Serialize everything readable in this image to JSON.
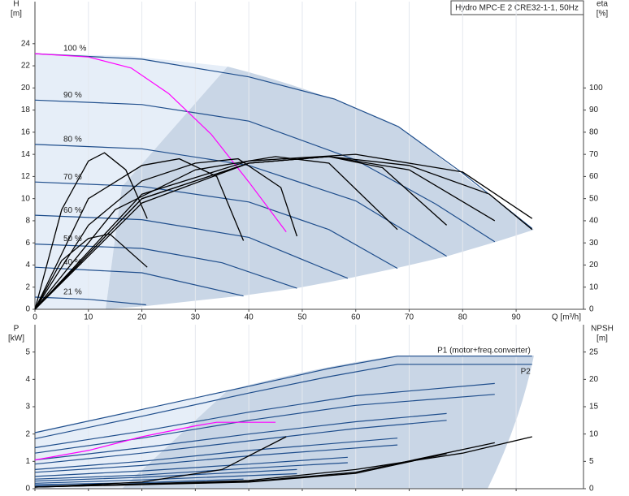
{
  "chart_data": [
    {
      "type": "line",
      "title": "Hydro MPC-E 2 CRE32-1-1, 50Hz",
      "ylabel": "H",
      "yunit": "[m]",
      "y2label": "eta",
      "y2unit": "[%]",
      "xlabel": "Q [m³/h]",
      "xlim": [
        0,
        102.6
      ],
      "ylim": [
        0,
        27.8
      ],
      "y2lim": [
        0,
        139
      ],
      "xticks": [
        0,
        10,
        20,
        30,
        40,
        50,
        60,
        70,
        80,
        90
      ],
      "yticks": [
        0,
        2,
        4,
        6,
        8,
        10,
        12,
        14,
        16,
        18,
        20,
        22,
        24
      ],
      "y2ticks": [
        0,
        10,
        20,
        30,
        40,
        50,
        60,
        70,
        80,
        90,
        100
      ],
      "series": [
        {
          "name": "100 %",
          "color": "#1f4e8c",
          "x": [
            0,
            20,
            40,
            56,
            68,
            80,
            93
          ],
          "values": [
            23.1,
            22.6,
            21,
            19,
            16.5,
            12.3,
            7.3
          ]
        },
        {
          "name": "90 %",
          "color": "#1f4e8c",
          "x": [
            0,
            20,
            40,
            60,
            75,
            86
          ],
          "values": [
            18.9,
            18.5,
            17,
            13.5,
            9.5,
            6.1
          ]
        },
        {
          "name": "80 %",
          "color": "#1f4e8c",
          "x": [
            0,
            20,
            40,
            60,
            77
          ],
          "values": [
            14.9,
            14.5,
            13,
            9.8,
            4.8
          ]
        },
        {
          "name": "70 %",
          "color": "#1f4e8c",
          "x": [
            0,
            20,
            40,
            55,
            67.8
          ],
          "values": [
            11.5,
            11.1,
            9.7,
            7.2,
            3.7
          ]
        },
        {
          "name": "60 %",
          "color": "#1f4e8c",
          "x": [
            0,
            20,
            40,
            58.5
          ],
          "values": [
            8.5,
            8.1,
            6.5,
            2.8
          ]
        },
        {
          "name": "50 %",
          "color": "#1f4e8c",
          "x": [
            0,
            20,
            35,
            49
          ],
          "values": [
            5.9,
            5.5,
            4.2,
            1.9
          ]
        },
        {
          "name": "40 %",
          "color": "#1f4e8c",
          "x": [
            0,
            20,
            39
          ],
          "values": [
            3.8,
            3.3,
            1.2
          ]
        },
        {
          "name": "21 %",
          "color": "#1f4e8c",
          "x": [
            0,
            10,
            20.8
          ],
          "values": [
            1.1,
            0.9,
            0.4
          ]
        },
        {
          "color": "#ff00ff",
          "x": [
            0,
            10,
            18,
            25,
            33,
            40,
            47
          ],
          "values": [
            23.1,
            22.8,
            21.8,
            19.5,
            15.8,
            11.5,
            7
          ]
        },
        {
          "color": "#000000",
          "axis": "y2",
          "x": [
            0,
            5,
            10,
            13,
            17,
            21
          ],
          "values": [
            0,
            45,
            67,
            70.7,
            63,
            41
          ]
        },
        {
          "color": "#000000",
          "axis": "y2",
          "x": [
            0,
            5,
            10,
            14,
            21
          ],
          "values": [
            0,
            22,
            32,
            34,
            19
          ]
        },
        {
          "color": "#000000",
          "axis": "y2",
          "x": [
            0,
            10,
            20,
            27,
            34,
            39
          ],
          "values": [
            0,
            50,
            65,
            68,
            60,
            31
          ]
        },
        {
          "color": "#000000",
          "axis": "y2",
          "x": [
            0,
            10,
            20,
            30,
            38,
            46,
            49
          ],
          "values": [
            0,
            38,
            58,
            66,
            68,
            55,
            33
          ]
        },
        {
          "color": "#000000",
          "axis": "y2",
          "x": [
            0,
            15,
            30,
            45,
            55,
            67.8
          ],
          "values": [
            0,
            45,
            63,
            69,
            66,
            36
          ]
        },
        {
          "color": "#000000",
          "axis": "y2",
          "x": [
            0,
            20,
            40,
            55,
            65,
            77
          ],
          "values": [
            0,
            50,
            66,
            69,
            64,
            38
          ]
        },
        {
          "color": "#000000",
          "axis": "y2",
          "x": [
            0,
            20,
            40,
            55,
            70,
            86
          ],
          "values": [
            0,
            48,
            66,
            69,
            63,
            40
          ]
        },
        {
          "color": "#000000",
          "axis": "y2",
          "x": [
            0,
            20,
            40,
            55,
            70,
            85,
            93
          ],
          "values": [
            0,
            50,
            66,
            69,
            65,
            52,
            36
          ]
        },
        {
          "color": "#000000",
          "axis": "y2",
          "x": [
            0,
            20,
            40,
            60,
            80,
            93
          ],
          "values": [
            0,
            52,
            67,
            70,
            62,
            41
          ]
        }
      ]
    },
    {
      "type": "line",
      "ylabel": "P",
      "yunit": "[kW]",
      "y2label": "NPSH",
      "y2unit": "[m]",
      "xlim": [
        0,
        102.6
      ],
      "ylim": [
        0,
        6
      ],
      "y2lim": [
        0,
        30
      ],
      "xticks": [
        0,
        10,
        20,
        30,
        40,
        50,
        60,
        70,
        80,
        90
      ],
      "yticks": [
        0,
        1,
        2,
        3,
        4,
        5
      ],
      "y2ticks": [
        0,
        5,
        10,
        15,
        20,
        25
      ],
      "series": [
        {
          "name": "P1 (motor+freq.converter)",
          "color": "#1f4e8c",
          "x": [
            0,
            20,
            40,
            55,
            67.8,
            93
          ],
          "values": [
            2.05,
            2.9,
            3.75,
            4.4,
            4.85,
            4.85
          ]
        },
        {
          "name": "P2",
          "color": "#1f4e8c",
          "x": [
            0,
            20,
            40,
            55,
            67.8,
            93
          ],
          "values": [
            1.83,
            2.65,
            3.5,
            4.1,
            4.55,
            4.55
          ]
        },
        {
          "color": "#1f4e8c",
          "x": [
            0,
            20,
            40,
            60,
            86
          ],
          "values": [
            1.5,
            2.1,
            2.8,
            3.4,
            3.85
          ]
        },
        {
          "color": "#1f4e8c",
          "x": [
            0,
            20,
            40,
            60,
            86
          ],
          "values": [
            1.3,
            1.85,
            2.5,
            3.05,
            3.45
          ]
        },
        {
          "color": "#1f4e8c",
          "x": [
            0,
            20,
            40,
            60,
            77
          ],
          "values": [
            1.05,
            1.5,
            2,
            2.45,
            2.75
          ]
        },
        {
          "color": "#1f4e8c",
          "x": [
            0,
            20,
            40,
            60,
            77
          ],
          "values": [
            0.9,
            1.3,
            1.75,
            2.2,
            2.5
          ]
        },
        {
          "color": "#1f4e8c",
          "x": [
            0,
            20,
            40,
            67.8
          ],
          "values": [
            0.7,
            1.0,
            1.4,
            1.85
          ]
        },
        {
          "color": "#1f4e8c",
          "x": [
            0,
            20,
            40,
            67.8
          ],
          "values": [
            0.6,
            0.85,
            1.2,
            1.6
          ]
        },
        {
          "color": "#1f4e8c",
          "x": [
            0,
            20,
            40,
            58.5
          ],
          "values": [
            0.45,
            0.65,
            0.9,
            1.15
          ]
        },
        {
          "color": "#1f4e8c",
          "x": [
            0,
            20,
            40,
            58.5
          ],
          "values": [
            0.35,
            0.5,
            0.75,
            0.95
          ]
        },
        {
          "color": "#1f4e8c",
          "x": [
            0,
            20,
            49
          ],
          "values": [
            0.28,
            0.42,
            0.7
          ]
        },
        {
          "color": "#1f4e8c",
          "x": [
            0,
            20,
            49
          ],
          "values": [
            0.2,
            0.32,
            0.55
          ]
        },
        {
          "color": "#1f4e8c",
          "x": [
            0,
            20,
            39
          ],
          "values": [
            0.15,
            0.22,
            0.35
          ]
        },
        {
          "color": "#1f4e8c",
          "x": [
            0,
            20,
            39
          ],
          "values": [
            0.1,
            0.16,
            0.25
          ]
        },
        {
          "color": "#ff00ff",
          "x": [
            0,
            10,
            20,
            30,
            34,
            45
          ],
          "values": [
            1.05,
            1.4,
            1.9,
            2.3,
            2.43,
            2.43
          ]
        },
        {
          "color": "#000000",
          "axis": "y2",
          "x": [
            0,
            20,
            35,
            47
          ],
          "values": [
            0.3,
            1.2,
            3.5,
            9.5
          ]
        },
        {
          "color": "#000000",
          "axis": "y2",
          "x": [
            0,
            40,
            60,
            80,
            93
          ],
          "values": [
            0.3,
            1.5,
            3.5,
            6.5,
            9.5
          ]
        },
        {
          "color": "#000000",
          "axis": "y2",
          "x": [
            0,
            40,
            60,
            86
          ],
          "values": [
            0.3,
            1.3,
            3,
            8.4
          ]
        },
        {
          "color": "#000000",
          "axis": "y2",
          "x": [
            0,
            40,
            60,
            77
          ],
          "values": [
            0.3,
            1.2,
            2.8,
            6.4
          ]
        }
      ]
    }
  ]
}
